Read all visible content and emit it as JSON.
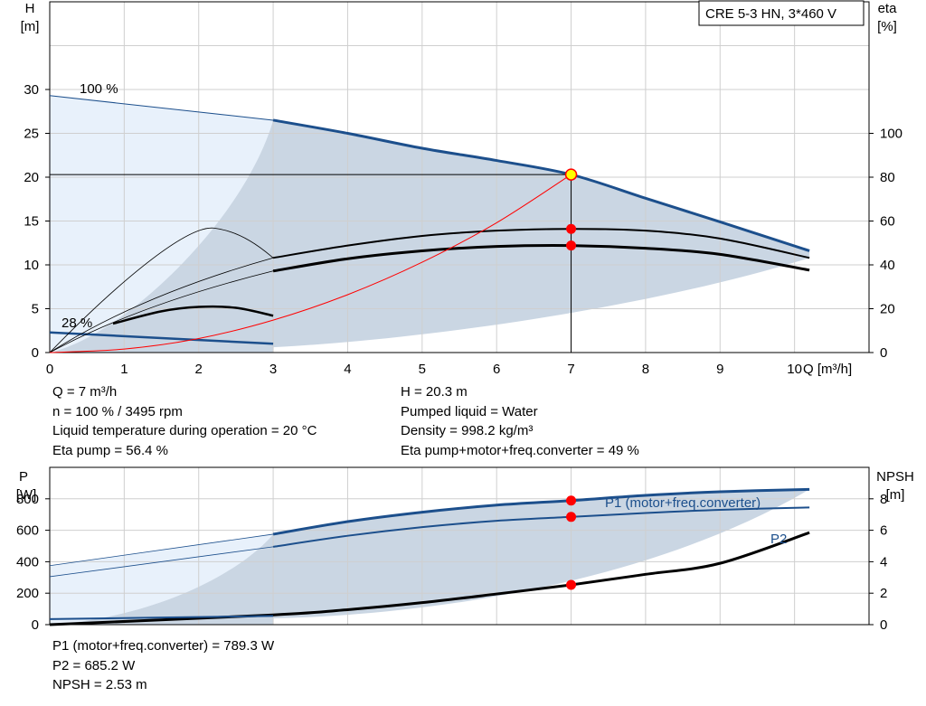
{
  "pump_label": "CRE 5-3 HN, 3*460 V",
  "colors": {
    "curve": "#1c4f8c",
    "fill_dark": "#cad6e3",
    "fill_light": "#e8f1fb",
    "duty": "#ff0000",
    "grid": "#cfcfcf"
  },
  "chart_data": [
    {
      "type": "line",
      "id": "head",
      "xlabel": "Q [m³/h]",
      "ylabel_left": [
        "H",
        "[m]"
      ],
      "ylabel_right": [
        "eta",
        "[%]"
      ],
      "xlim": [
        0,
        11
      ],
      "ylim": [
        0,
        40
      ],
      "xticks": [
        "0",
        "1",
        "2",
        "3",
        "4",
        "5",
        "6",
        "7",
        "8",
        "9",
        "10"
      ],
      "yticks_left": [
        "0",
        "5",
        "10",
        "15",
        "20",
        "25",
        "30"
      ],
      "yticks_right": [
        "0",
        "20",
        "40",
        "60",
        "80",
        "100"
      ],
      "eta_axis_scale": 0.25,
      "grid": true,
      "speed_labels": [
        "100 %",
        "28 %"
      ],
      "series": [
        {
          "x": [
            0,
            3,
            4,
            5,
            6,
            7,
            8,
            9,
            10.2
          ],
          "y": [
            29.3,
            26.5,
            25.0,
            23.3,
            21.9,
            20.3,
            17.6,
            14.9,
            11.6
          ]
        },
        {
          "x": [
            0,
            3
          ],
          "y": [
            2.3,
            1.0
          ]
        },
        {
          "x": [
            3,
            4,
            5,
            6,
            7,
            8,
            9,
            10.2
          ],
          "y": [
            10.8,
            12.2,
            13.3,
            13.9,
            14.1,
            13.9,
            13.0,
            10.8
          ]
        },
        {
          "x": [
            3,
            4,
            5,
            6,
            7,
            8,
            9,
            10.2
          ],
          "y": [
            9.3,
            10.7,
            11.6,
            12.1,
            12.2,
            11.9,
            11.2,
            9.4
          ]
        },
        {
          "x": [
            0.85,
            1.5,
            2.0,
            2.5,
            3.0
          ],
          "y": [
            3.3,
            4.7,
            5.2,
            5.1,
            4.2
          ]
        },
        {
          "x": [
            0,
            1,
            2,
            3,
            4,
            5,
            6,
            7
          ],
          "y": [
            0,
            0.4,
            1.6,
            3.7,
            6.6,
            10.3,
            14.8,
            20.3
          ]
        }
      ],
      "duty_points": [
        {
          "x": 7,
          "y": 20.3
        },
        {
          "x": 7,
          "y": 14.1
        },
        {
          "x": 7,
          "y": 12.2
        }
      ]
    },
    {
      "type": "line",
      "id": "power",
      "ylabel_left": [
        "P",
        "[W]"
      ],
      "ylabel_right": [
        "NPSH",
        "[m]"
      ],
      "xlim": [
        0,
        11
      ],
      "ylim": [
        0,
        1000
      ],
      "yticks_left": [
        "0",
        "200",
        "400",
        "600",
        "800"
      ],
      "yticks_right": [
        "0",
        "2",
        "4",
        "6",
        "8"
      ],
      "npsh_axis_scale": 100,
      "grid": true,
      "series": [
        {
          "name": "P1 (motor+freq.converter)",
          "x": [
            0,
            3,
            4,
            5,
            6,
            7,
            8,
            9,
            10.2
          ],
          "y": [
            375,
            575,
            655,
            715,
            760,
            789,
            822,
            845,
            860
          ]
        },
        {
          "name": "P2",
          "x": [
            0,
            3,
            4,
            5,
            6,
            7,
            8,
            9,
            10.2
          ],
          "y": [
            305,
            495,
            565,
            620,
            660,
            685,
            710,
            730,
            745
          ]
        },
        {
          "x": [
            0,
            3,
            4,
            5,
            6,
            7,
            8,
            9,
            10.2
          ],
          "y": [
            0,
            62,
            95,
            140,
            195,
            253,
            320,
            390,
            585
          ]
        },
        {
          "x": [
            0,
            3
          ],
          "y": [
            35,
            55
          ]
        }
      ],
      "duty_points": [
        {
          "x": 7,
          "y": 789
        },
        {
          "x": 7,
          "y": 685
        },
        {
          "x": 7,
          "y": 253
        }
      ]
    }
  ],
  "info": {
    "q": "Q = 7 m³/h",
    "n": "n = 100 % / 3495 rpm",
    "temp": "Liquid temperature during operation = 20 °C",
    "eta_pump": "Eta pump = 56.4 %",
    "h": "H = 20.3 m",
    "liquid": "Pumped liquid = Water",
    "density": "Density = 998.2 kg/m³",
    "eta_total": "Eta pump+motor+freq.converter = 49 %",
    "p1": "P1 (motor+freq.converter) = 789.3 W",
    "p2": "P2 = 685.2 W",
    "npsh": "NPSH = 2.53 m"
  }
}
